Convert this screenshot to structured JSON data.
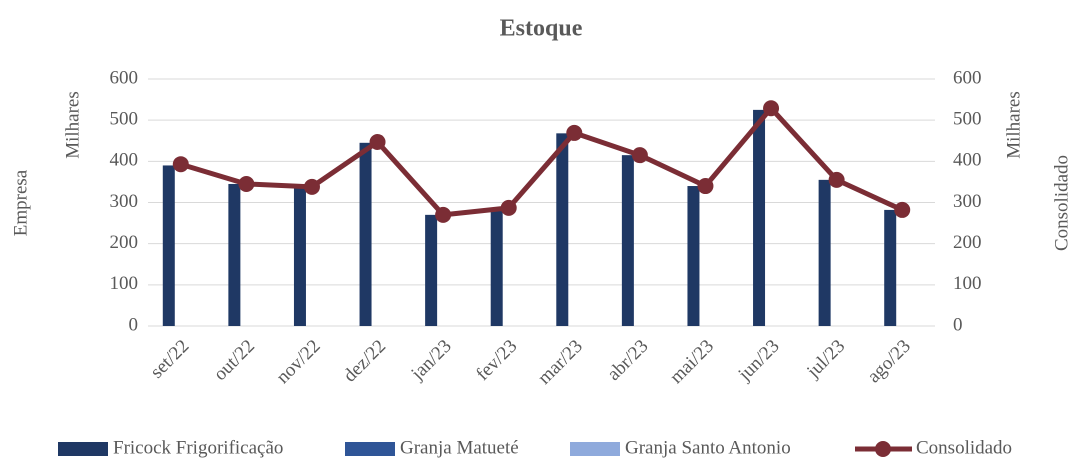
{
  "chart_data": {
    "type": "bar",
    "title": "Estoque",
    "categories": [
      "set/22",
      "out/22",
      "nov/22",
      "dez/22",
      "jan/23",
      "fev/23",
      "mar/23",
      "abr/23",
      "mai/23",
      "jun/23",
      "jul/23",
      "ago/23"
    ],
    "series": [
      {
        "name": "Fricock Frigorificação",
        "color": "#1f3864",
        "values": [
          390,
          345,
          340,
          445,
          270,
          282,
          468,
          415,
          340,
          525,
          355,
          282
        ]
      },
      {
        "name": "Granja Matueté",
        "color": "#2f5597",
        "values": [
          0,
          0,
          0,
          0,
          0,
          0,
          0,
          0,
          0,
          0,
          0,
          0
        ]
      },
      {
        "name": "Granja Santo Antonio",
        "color": "#8faadc",
        "values": [
          0,
          0,
          0,
          0,
          0,
          0,
          0,
          0,
          0,
          0,
          0,
          0
        ]
      },
      {
        "name": "Consolidado",
        "color": "#7b2d35",
        "type": "line",
        "axis": "y2",
        "values": [
          393,
          345,
          338,
          447,
          270,
          287,
          469,
          415,
          340,
          529,
          355,
          282
        ]
      }
    ],
    "y_label": [
      "Empresa",
      "Milhares"
    ],
    "y2_label": [
      "Milhares",
      "Consolidado"
    ],
    "ylim": [
      0,
      600
    ],
    "yticks": [
      0,
      100,
      200,
      300,
      400,
      500,
      600
    ],
    "y2lim": [
      0,
      600
    ],
    "y2ticks": [
      0,
      100,
      200,
      300,
      400,
      500,
      600
    ],
    "grid": true,
    "legend": "bottom"
  }
}
